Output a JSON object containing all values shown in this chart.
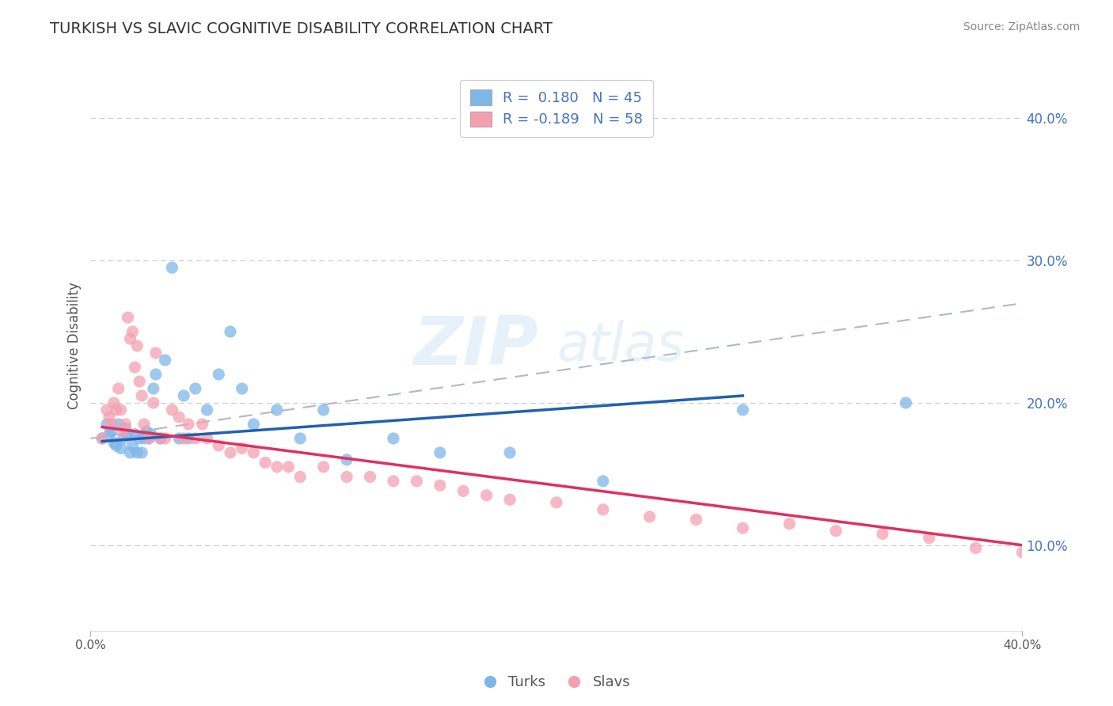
{
  "title": "TURKISH VS SLAVIC COGNITIVE DISABILITY CORRELATION CHART",
  "source": "Source: ZipAtlas.com",
  "ylabel": "Cognitive Disability",
  "xlim": [
    0.0,
    0.4
  ],
  "ylim": [
    0.04,
    0.44
  ],
  "ytick_labels": [
    "10.0%",
    "20.0%",
    "30.0%",
    "40.0%"
  ],
  "ytick_values": [
    0.1,
    0.2,
    0.3,
    0.4
  ],
  "turks_color": "#7eb6e8",
  "slavs_color": "#f4a0b0",
  "turks_line_color": "#2060b0",
  "slavs_line_color": "#e03060",
  "trend_line_color": "#b0b8c8",
  "turks_x": [
    0.005,
    0.007,
    0.008,
    0.009,
    0.01,
    0.011,
    0.012,
    0.013,
    0.014,
    0.015,
    0.016,
    0.017,
    0.018,
    0.019,
    0.02,
    0.021,
    0.022,
    0.023,
    0.024,
    0.025,
    0.026,
    0.027,
    0.028,
    0.03,
    0.032,
    0.035,
    0.038,
    0.04,
    0.042,
    0.045,
    0.05,
    0.055,
    0.06,
    0.065,
    0.07,
    0.08,
    0.09,
    0.1,
    0.11,
    0.13,
    0.15,
    0.18,
    0.22,
    0.28,
    0.35
  ],
  "turks_y": [
    0.175,
    0.185,
    0.178,
    0.18,
    0.172,
    0.17,
    0.185,
    0.168,
    0.175,
    0.182,
    0.178,
    0.165,
    0.17,
    0.178,
    0.165,
    0.175,
    0.165,
    0.175,
    0.18,
    0.175,
    0.178,
    0.21,
    0.22,
    0.175,
    0.23,
    0.295,
    0.175,
    0.205,
    0.175,
    0.21,
    0.195,
    0.22,
    0.25,
    0.21,
    0.185,
    0.195,
    0.175,
    0.195,
    0.16,
    0.175,
    0.165,
    0.165,
    0.145,
    0.195,
    0.2
  ],
  "slavs_x": [
    0.005,
    0.007,
    0.008,
    0.009,
    0.01,
    0.011,
    0.012,
    0.013,
    0.014,
    0.015,
    0.016,
    0.017,
    0.018,
    0.019,
    0.02,
    0.021,
    0.022,
    0.023,
    0.025,
    0.027,
    0.028,
    0.03,
    0.032,
    0.035,
    0.038,
    0.04,
    0.042,
    0.045,
    0.048,
    0.05,
    0.055,
    0.06,
    0.065,
    0.07,
    0.075,
    0.08,
    0.085,
    0.09,
    0.1,
    0.11,
    0.12,
    0.13,
    0.14,
    0.15,
    0.16,
    0.17,
    0.18,
    0.2,
    0.22,
    0.24,
    0.26,
    0.28,
    0.3,
    0.32,
    0.34,
    0.36,
    0.38,
    0.4
  ],
  "slavs_y": [
    0.175,
    0.195,
    0.19,
    0.185,
    0.2,
    0.195,
    0.21,
    0.195,
    0.18,
    0.185,
    0.26,
    0.245,
    0.25,
    0.225,
    0.24,
    0.215,
    0.205,
    0.185,
    0.175,
    0.2,
    0.235,
    0.175,
    0.175,
    0.195,
    0.19,
    0.175,
    0.185,
    0.175,
    0.185,
    0.175,
    0.17,
    0.165,
    0.168,
    0.165,
    0.158,
    0.155,
    0.155,
    0.148,
    0.155,
    0.148,
    0.148,
    0.145,
    0.145,
    0.142,
    0.138,
    0.135,
    0.132,
    0.13,
    0.125,
    0.12,
    0.118,
    0.112,
    0.115,
    0.11,
    0.108,
    0.105,
    0.098,
    0.095
  ],
  "turks_line_x": [
    0.005,
    0.28
  ],
  "turks_line_y": [
    0.173,
    0.205
  ],
  "slavs_line_x": [
    0.005,
    0.4
  ],
  "slavs_line_y": [
    0.183,
    0.1
  ],
  "gray_line_x": [
    0.0,
    0.4
  ],
  "gray_line_y": [
    0.175,
    0.27
  ]
}
